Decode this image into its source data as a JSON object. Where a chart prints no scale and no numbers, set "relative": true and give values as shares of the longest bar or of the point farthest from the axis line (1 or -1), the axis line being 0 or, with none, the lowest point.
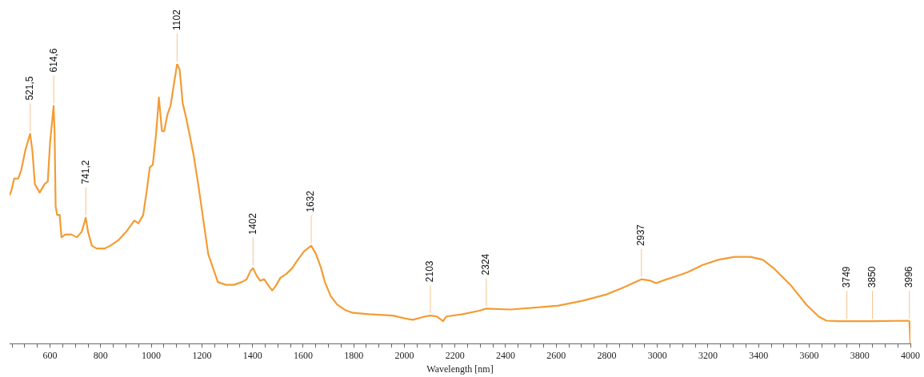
{
  "chart_data": {
    "type": "line",
    "relative": true,
    "xlabel": "Wavelength [nm]",
    "color": "#f39c34",
    "grid": false,
    "legend": false,
    "marker": "none",
    "line_style": "solid",
    "tick_labels": "x",
    "xlim": [
      440,
      4000
    ],
    "xticks": [
      {
        "value": 450,
        "label": null
      },
      {
        "value": 500,
        "label": null
      },
      {
        "value": 550,
        "label": null
      },
      600,
      {
        "value": 650,
        "label": null
      },
      {
        "value": 700,
        "label": null
      },
      {
        "value": 750,
        "label": null
      },
      800,
      {
        "value": 850,
        "label": null
      },
      {
        "value": 900,
        "label": null
      },
      {
        "value": 950,
        "label": null
      },
      1000,
      {
        "value": 1050,
        "label": null
      },
      {
        "value": 1100,
        "label": null
      },
      {
        "value": 1150,
        "label": null
      },
      1200,
      {
        "value": 1250,
        "label": null
      },
      {
        "value": 1300,
        "label": null
      },
      {
        "value": 1350,
        "label": null
      },
      1400,
      {
        "value": 1450,
        "label": null
      },
      {
        "value": 1500,
        "label": null
      },
      {
        "value": 1550,
        "label": null
      },
      1600,
      {
        "value": 1650,
        "label": null
      },
      {
        "value": 1700,
        "label": null
      },
      {
        "value": 1750,
        "label": null
      },
      1800,
      {
        "value": 1850,
        "label": null
      },
      {
        "value": 1900,
        "label": null
      },
      {
        "value": 1950,
        "label": null
      },
      2000,
      {
        "value": 2050,
        "label": null
      },
      {
        "value": 2100,
        "label": null
      },
      {
        "value": 2150,
        "label": null
      },
      2200,
      {
        "value": 2250,
        "label": null
      },
      {
        "value": 2300,
        "label": null
      },
      {
        "value": 2350,
        "label": null
      },
      2400,
      {
        "value": 2450,
        "label": null
      },
      {
        "value": 2500,
        "label": null
      },
      {
        "value": 2550,
        "label": null
      },
      2600,
      {
        "value": 2650,
        "label": null
      },
      {
        "value": 2700,
        "label": null
      },
      {
        "value": 2750,
        "label": null
      },
      2800,
      {
        "value": 2850,
        "label": null
      },
      {
        "value": 2900,
        "label": null
      },
      {
        "value": 2950,
        "label": null
      },
      3000,
      {
        "value": 3050,
        "label": null
      },
      {
        "value": 3100,
        "label": null
      },
      {
        "value": 3150,
        "label": null
      },
      3200,
      {
        "value": 3250,
        "label": null
      },
      {
        "value": 3300,
        "label": null
      },
      {
        "value": 3350,
        "label": null
      },
      3400,
      {
        "value": 3450,
        "label": null
      },
      {
        "value": 3500,
        "label": null
      },
      {
        "value": 3550,
        "label": null
      },
      3600,
      {
        "value": 3650,
        "label": null
      },
      {
        "value": 3700,
        "label": null
      },
      {
        "value": 3750,
        "label": null
      },
      3800,
      {
        "value": 3850,
        "label": null
      },
      {
        "value": 3900,
        "label": null
      },
      {
        "value": 3950,
        "label": null
      },
      4000
    ],
    "x": [
      440,
      448,
      458,
      464,
      474,
      486,
      502,
      521,
      530,
      540,
      559,
      578,
      591,
      600,
      614,
      618,
      622,
      628,
      638,
      645,
      660,
      685,
      706,
      725,
      741,
      750,
      765,
      784,
      816,
      838,
      870,
      901,
      933,
      949,
      968,
      981,
      994,
      1006,
      1019,
      1030,
      1042,
      1051,
      1064,
      1076,
      1102,
      1112,
      1124,
      1137,
      1153,
      1168,
      1187,
      1206,
      1225,
      1244,
      1263,
      1295,
      1326,
      1358,
      1377,
      1392,
      1402,
      1415,
      1430,
      1446,
      1465,
      1478,
      1491,
      1510,
      1535,
      1557,
      1579,
      1604,
      1632,
      1651,
      1671,
      1686,
      1709,
      1734,
      1766,
      1797,
      1860,
      1955,
      2002,
      2034,
      2081,
      2103,
      2128,
      2153,
      2166,
      2230,
      2293,
      2324,
      2420,
      2546,
      2609,
      2704,
      2799,
      2862,
      2937,
      2973,
      2995,
      3021,
      3084,
      3122,
      3179,
      3242,
      3305,
      3368,
      3416,
      3463,
      3526,
      3589,
      3637,
      3668,
      3715,
      3749,
      3850,
      3990,
      3996,
      4000
    ],
    "values": [
      0.53,
      0.55,
      0.59,
      0.59,
      0.59,
      0.62,
      0.69,
      0.75,
      0.69,
      0.57,
      0.54,
      0.57,
      0.58,
      0.72,
      0.85,
      0.75,
      0.49,
      0.46,
      0.46,
      0.38,
      0.39,
      0.39,
      0.38,
      0.4,
      0.45,
      0.4,
      0.35,
      0.34,
      0.34,
      0.35,
      0.37,
      0.4,
      0.44,
      0.43,
      0.46,
      0.54,
      0.63,
      0.64,
      0.75,
      0.88,
      0.76,
      0.76,
      0.82,
      0.85,
      1,
      0.98,
      0.86,
      0.81,
      0.74,
      0.67,
      0.56,
      0.44,
      0.32,
      0.27,
      0.22,
      0.21,
      0.21,
      0.22,
      0.23,
      0.26,
      0.27,
      0.245,
      0.225,
      0.23,
      0.205,
      0.19,
      0.205,
      0.235,
      0.25,
      0.27,
      0.3,
      0.33,
      0.35,
      0.32,
      0.27,
      0.22,
      0.17,
      0.14,
      0.12,
      0.11,
      0.105,
      0.1,
      0.09,
      0.085,
      0.097,
      0.1,
      0.097,
      0.08,
      0.097,
      0.105,
      0.117,
      0.125,
      0.122,
      0.131,
      0.136,
      0.153,
      0.176,
      0.199,
      0.23,
      0.225,
      0.216,
      0.225,
      0.244,
      0.256,
      0.281,
      0.3,
      0.31,
      0.31,
      0.3,
      0.267,
      0.21,
      0.139,
      0.097,
      0.082,
      0.08,
      0.08,
      0.08,
      0.082,
      0.08,
      0
    ],
    "annotations": [
      {
        "text": "521,5",
        "x": 521.5,
        "y": 0.75
      },
      {
        "text": "614,6",
        "x": 614.6,
        "y": 0.85
      },
      {
        "text": "741,2",
        "x": 741.2,
        "y": 0.45
      },
      {
        "text": "1102",
        "x": 1102,
        "y": 1
      },
      {
        "text": "1402",
        "x": 1402,
        "y": 0.27
      },
      {
        "text": "1632",
        "x": 1632,
        "y": 0.35
      },
      {
        "text": "2103",
        "x": 2103,
        "y": 0.1
      },
      {
        "text": "2324",
        "x": 2324,
        "y": 0.125
      },
      {
        "text": "2937",
        "x": 2937,
        "y": 0.23
      },
      {
        "text": "3749",
        "x": 3749,
        "y": 0.08
      },
      {
        "text": "3850",
        "x": 3850,
        "y": 0.08
      },
      {
        "text": "3996",
        "x": 3996,
        "y": 0.08
      }
    ]
  }
}
